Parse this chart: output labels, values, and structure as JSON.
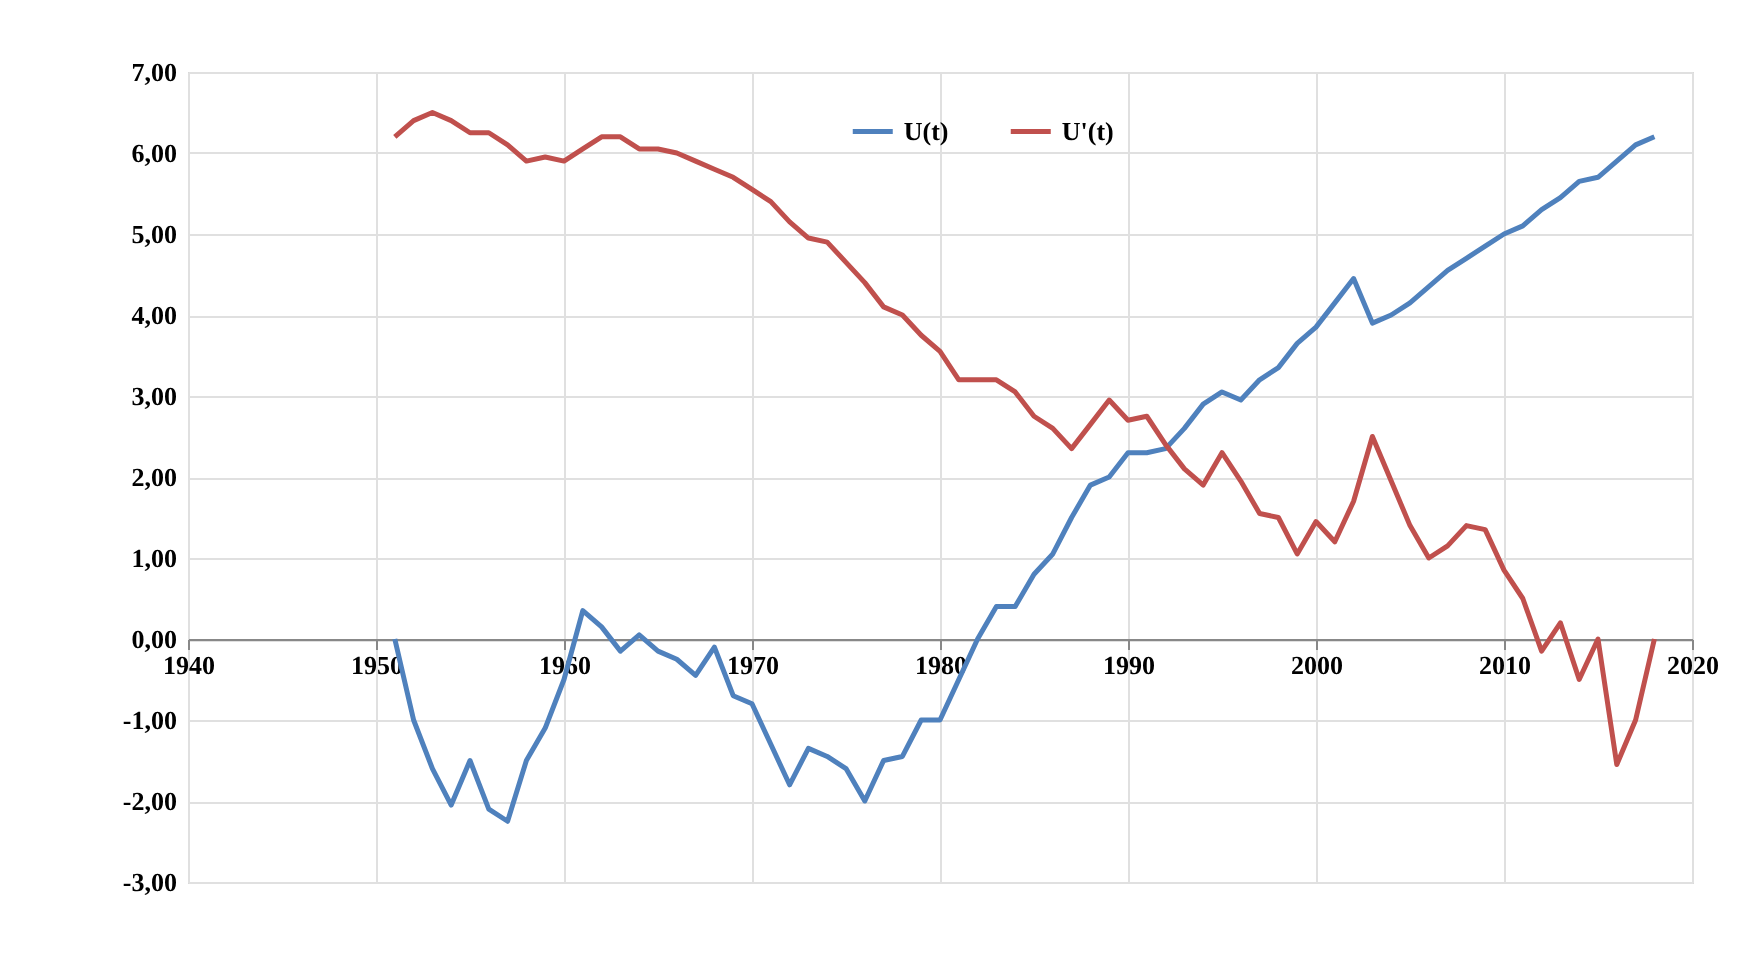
{
  "chart_data": {
    "type": "line",
    "x": [
      1951,
      1952,
      1953,
      1954,
      1955,
      1956,
      1957,
      1958,
      1959,
      1960,
      1961,
      1962,
      1963,
      1964,
      1965,
      1966,
      1967,
      1968,
      1969,
      1970,
      1971,
      1972,
      1973,
      1974,
      1975,
      1976,
      1977,
      1978,
      1979,
      1980,
      1981,
      1982,
      1983,
      1984,
      1985,
      1986,
      1987,
      1988,
      1989,
      1990,
      1991,
      1992,
      1993,
      1994,
      1995,
      1996,
      1997,
      1998,
      1999,
      2000,
      2001,
      2002,
      2003,
      2004,
      2005,
      2006,
      2007,
      2008,
      2009,
      2010,
      2011,
      2012,
      2013,
      2014,
      2015,
      2016,
      2017,
      2018
    ],
    "series": [
      {
        "name": "U(t)",
        "color": "#4f81bd",
        "values": [
          0,
          -1.0,
          -1.6,
          -2.05,
          -1.5,
          -2.1,
          -2.25,
          -1.5,
          -1.1,
          -0.5,
          0.35,
          0.15,
          -0.15,
          0.05,
          -0.15,
          -0.25,
          -0.45,
          -0.1,
          -0.7,
          -0.8,
          -1.3,
          -1.8,
          -1.35,
          -1.45,
          -1.6,
          -2.0,
          -1.5,
          -1.45,
          -1.0,
          -1.0,
          -0.5,
          0.0,
          0.4,
          0.4,
          0.8,
          1.05,
          1.5,
          1.9,
          2.0,
          2.3,
          2.3,
          2.35,
          2.6,
          2.9,
          3.05,
          2.95,
          3.2,
          3.35,
          3.65,
          3.85,
          4.15,
          4.45,
          3.9,
          4.0,
          4.15,
          4.35,
          4.55,
          4.7,
          4.85,
          5.0,
          5.1,
          5.3,
          5.45,
          5.65,
          5.7,
          5.9,
          6.1,
          6.2
        ]
      },
      {
        "name": "U'(t)",
        "color": "#c0504d",
        "values": [
          6.2,
          6.4,
          6.5,
          6.4,
          6.25,
          6.25,
          6.1,
          5.9,
          5.95,
          5.9,
          6.05,
          6.2,
          6.2,
          6.05,
          6.05,
          6.0,
          5.9,
          5.8,
          5.7,
          5.55,
          5.4,
          5.15,
          4.95,
          4.9,
          4.65,
          4.4,
          4.1,
          4.0,
          3.75,
          3.55,
          3.2,
          3.2,
          3.2,
          3.05,
          2.75,
          2.6,
          2.35,
          2.65,
          2.95,
          2.7,
          2.75,
          2.4,
          2.1,
          1.9,
          2.3,
          1.95,
          1.55,
          1.5,
          1.05,
          1.45,
          1.2,
          1.7,
          2.5,
          1.95,
          1.4,
          1.0,
          1.15,
          1.4,
          1.35,
          0.85,
          0.5,
          -0.15,
          0.2,
          -0.5,
          0.0,
          -1.55,
          -1.0,
          0.0
        ]
      }
    ],
    "xlim": [
      1940,
      2020
    ],
    "xticks": [
      1940,
      1950,
      1960,
      1970,
      1980,
      1990,
      2000,
      2010,
      2020
    ],
    "ylim": [
      -3,
      7
    ],
    "yticks": [
      {
        "value": -3,
        "label": "-3,00"
      },
      {
        "value": -2,
        "label": "-2,00"
      },
      {
        "value": -1,
        "label": "-1,00"
      },
      {
        "value": 0,
        "label": "0,00"
      },
      {
        "value": 1,
        "label": "1,00"
      },
      {
        "value": 2,
        "label": "2,00"
      },
      {
        "value": 3,
        "label": "3,00"
      },
      {
        "value": 4,
        "label": "4,00"
      },
      {
        "value": 5,
        "label": "5,00"
      },
      {
        "value": 6,
        "label": "6,00"
      },
      {
        "value": 7,
        "label": "7,00"
      }
    ],
    "grid": true,
    "legend": "top",
    "marker": "none",
    "line_style": "solid"
  }
}
